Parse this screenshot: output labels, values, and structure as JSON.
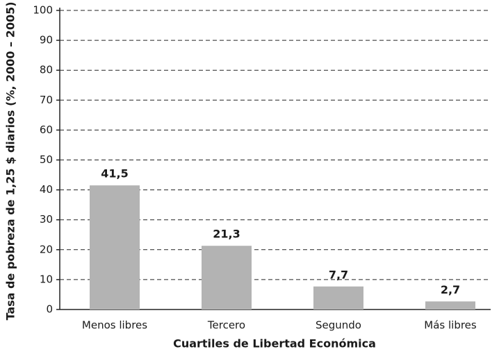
{
  "chart_data": {
    "type": "bar",
    "x_label": "Cuartiles de Libertad Económica",
    "y_label": "Tasa de pobreza de 1,25 $ diarios (%, 2000 – 2005)",
    "categories": [
      "Menos libres",
      "Tercero",
      "Segundo",
      "Más libres"
    ],
    "values": [
      41.5,
      21.3,
      7.7,
      2.7
    ],
    "value_labels": [
      "41,5",
      "21,3",
      "7,7",
      "2,7"
    ],
    "color": "#b3b3b3",
    "ylim": [
      0,
      100
    ],
    "yticks": [
      0,
      10,
      20,
      30,
      40,
      50,
      60,
      70,
      80,
      90,
      100
    ],
    "grid": true
  }
}
